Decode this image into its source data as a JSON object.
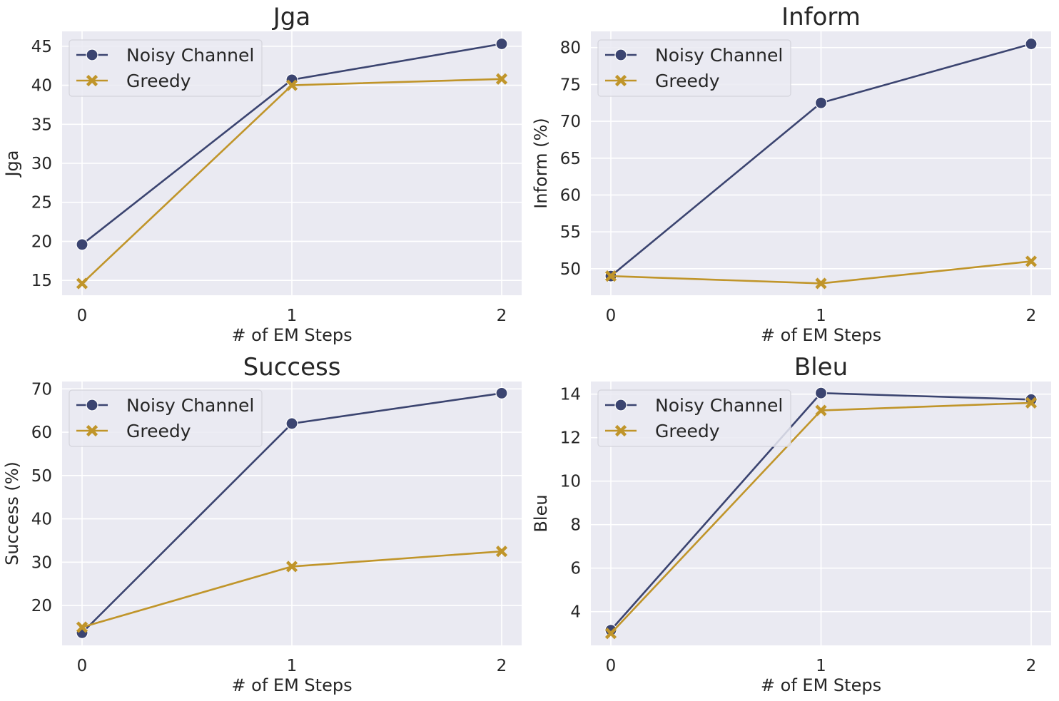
{
  "chart_data": [
    {
      "type": "line",
      "title": "Jga",
      "xlabel": "# of EM Steps",
      "ylabel": "Jga",
      "x": [
        0,
        1,
        2
      ],
      "xticks": [
        "0",
        "1",
        "2"
      ],
      "yticks": [
        15,
        20,
        25,
        30,
        35,
        40,
        45
      ],
      "ylim": [
        13.1,
        46.9
      ],
      "legend": "top-left",
      "grid": true,
      "series": [
        {
          "name": "Noisy Channel",
          "marker": "circle",
          "color": "#3b4470",
          "values": [
            19.6,
            40.7,
            45.3
          ]
        },
        {
          "name": "Greedy",
          "marker": "x",
          "color": "#c0952a",
          "values": [
            14.6,
            40.0,
            40.8
          ]
        }
      ]
    },
    {
      "type": "line",
      "title": "Inform",
      "xlabel": "# of EM Steps",
      "ylabel": "Inform (%)",
      "x": [
        0,
        1,
        2
      ],
      "xticks": [
        "0",
        "1",
        "2"
      ],
      "yticks": [
        50,
        55,
        60,
        65,
        70,
        75,
        80
      ],
      "ylim": [
        46.4,
        82.2
      ],
      "legend": "top-left",
      "grid": true,
      "series": [
        {
          "name": "Noisy Channel",
          "marker": "circle",
          "color": "#3b4470",
          "values": [
            49.0,
            72.5,
            80.5
          ]
        },
        {
          "name": "Greedy",
          "marker": "x",
          "color": "#c0952a",
          "values": [
            49.0,
            48.0,
            51.0
          ]
        }
      ]
    },
    {
      "type": "line",
      "title": "Success",
      "xlabel": "# of EM Steps",
      "ylabel": "Success (%)",
      "x": [
        0,
        1,
        2
      ],
      "xticks": [
        "0",
        "1",
        "2"
      ],
      "yticks": [
        20,
        30,
        40,
        50,
        60,
        70
      ],
      "ylim": [
        10.8,
        71.7
      ],
      "legend": "top-left",
      "grid": true,
      "series": [
        {
          "name": "Noisy Channel",
          "marker": "circle",
          "color": "#3b4470",
          "values": [
            13.7,
            62.0,
            69.0
          ]
        },
        {
          "name": "Greedy",
          "marker": "x",
          "color": "#c0952a",
          "values": [
            15.0,
            29.0,
            32.5
          ]
        }
      ]
    },
    {
      "type": "line",
      "title": "Bleu",
      "xlabel": "# of EM Steps",
      "ylabel": "Bleu",
      "x": [
        0,
        1,
        2
      ],
      "xticks": [
        "0",
        "1",
        "2"
      ],
      "yticks": [
        4,
        6,
        8,
        10,
        12,
        14
      ],
      "ylim": [
        2.45,
        14.58
      ],
      "legend": "top-left",
      "grid": true,
      "series": [
        {
          "name": "Noisy Channel",
          "marker": "circle",
          "color": "#3b4470",
          "values": [
            3.15,
            14.05,
            13.75
          ]
        },
        {
          "name": "Greedy",
          "marker": "x",
          "color": "#c0952a",
          "values": [
            3.0,
            13.25,
            13.6
          ]
        }
      ]
    }
  ]
}
